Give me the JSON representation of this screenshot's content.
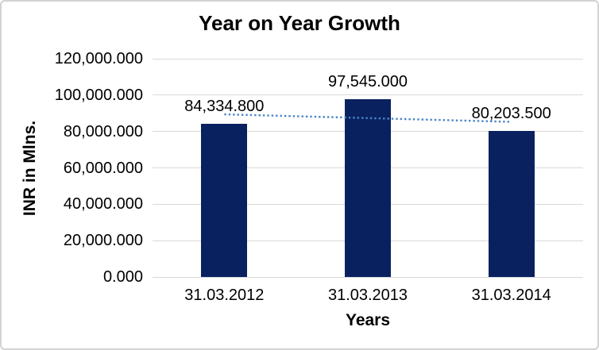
{
  "chart_data": {
    "type": "bar",
    "title": "Year on Year Growth",
    "xlabel": "Years",
    "ylabel": "INR in Mlns.",
    "categories": [
      "31.03.2012",
      "31.03.2013",
      "31.03.2014"
    ],
    "values": [
      84334.8,
      97545.0,
      80203.5
    ],
    "data_labels": [
      "84,334.800",
      "97,545.000",
      "80,203.500"
    ],
    "ylim": [
      0,
      120000
    ],
    "ytick_step": 20000,
    "ytick_labels": [
      "0.000",
      "20,000.000",
      "40,000.000",
      "60,000.000",
      "80,000.000",
      "100,000.000",
      "120,000.000"
    ],
    "grid": true,
    "legend_position": "none",
    "colors": {
      "bar": "#0a2160",
      "trendline": "#4a86c8",
      "gridline": "#d9d9d9",
      "text": "#000000",
      "border": "#d2d2d2"
    },
    "trendline": {
      "type": "linear",
      "style": "dotted"
    }
  }
}
